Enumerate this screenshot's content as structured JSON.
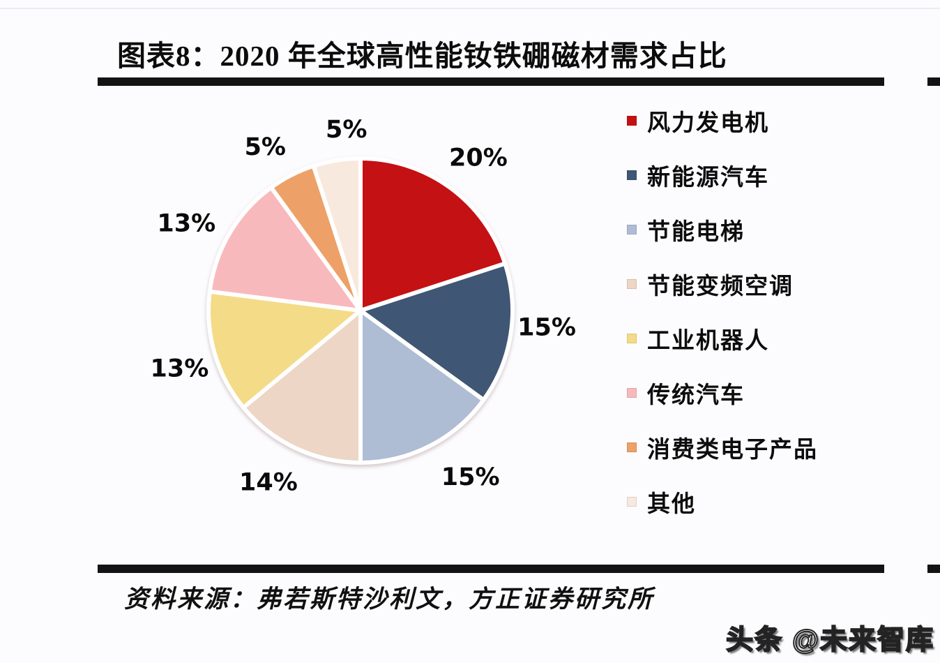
{
  "figure": {
    "title": "图表8：2020 年全球高性能钕铁硼磁材需求占比",
    "source": "资料来源：弗若斯特沙利文，方正证券研究所",
    "watermark": "头条 @未来智库"
  },
  "chart_data": {
    "type": "pie",
    "title": "2020 年全球高性能钕铁硼磁材需求占比",
    "unit": "%",
    "legend_position": "right",
    "start_angle_deg": 0,
    "direction": "clockwise",
    "total": 100,
    "segments": [
      {
        "label": "风力发电机",
        "value": 20,
        "color": "#c41114"
      },
      {
        "label": "新能源汽车",
        "value": 15,
        "color": "#3f5674"
      },
      {
        "label": "节能电梯",
        "value": 15,
        "color": "#aebcd4"
      },
      {
        "label": "节能变频空调",
        "value": 14,
        "color": "#edd6c5"
      },
      {
        "label": "工业机器人",
        "value": 13,
        "color": "#f4db87"
      },
      {
        "label": "传统汽车",
        "value": 13,
        "color": "#f8b9bd"
      },
      {
        "label": "消费类电子产品",
        "value": 5,
        "color": "#eda168"
      },
      {
        "label": "其他",
        "value": 5,
        "color": "#f8e9de"
      }
    ]
  }
}
